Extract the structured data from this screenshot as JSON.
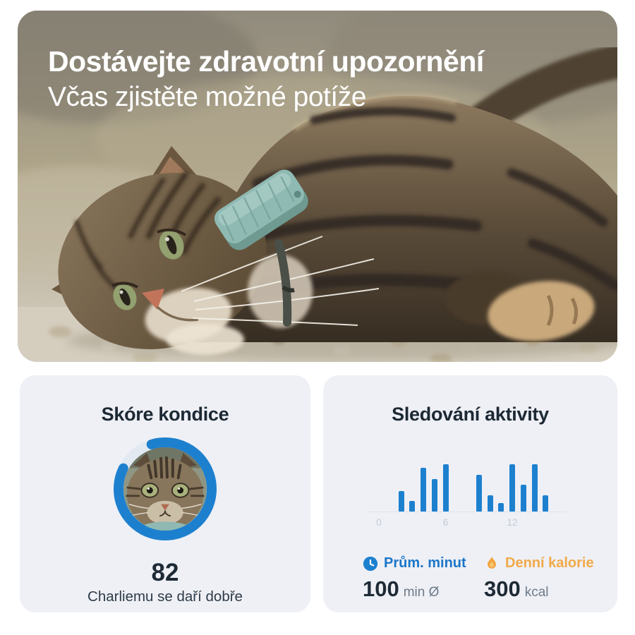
{
  "hero": {
    "title": "Dostávejte zdravotní upozornění",
    "subtitle": "Včas zjistěte možné potíže"
  },
  "fitness_card": {
    "title": "Skóre kondice",
    "score": "82",
    "ring_percent": 87,
    "ring_color": "#1d80cf",
    "track_color": "#e3e9f1",
    "caption": "Charliemu se daří dobře"
  },
  "activity_card": {
    "title": "Sledování aktivity",
    "stats": [
      {
        "icon": "clock-icon",
        "label": "Prům. minut",
        "value": "100",
        "unit": "min Ø",
        "color": "#1b76c8"
      },
      {
        "icon": "flame-icon",
        "label": "Denní kalorie",
        "value": "300",
        "unit": "kcal",
        "color": "#f2a948"
      }
    ]
  },
  "chart_data": {
    "type": "bar",
    "title": "Sledování aktivity",
    "x": [
      2,
      3,
      4,
      5,
      6,
      9,
      10,
      11,
      12,
      13,
      14,
      15
    ],
    "values": [
      44,
      22,
      92,
      68,
      100,
      78,
      34,
      18,
      100,
      56,
      100,
      34
    ],
    "xticks": [
      0,
      6,
      12
    ],
    "xlabel": "",
    "ylabel": "",
    "xlim": [
      0,
      17
    ],
    "ylim": [
      0,
      100
    ],
    "grid": false,
    "legend": false,
    "bar_color": "#1d80cf",
    "axis_color": "#dfe3e9",
    "tick_color": "#c4cbd4"
  },
  "colors": {
    "accent_blue": "#1d80cf",
    "accent_orange": "#f2a948",
    "card_bg": "#eef0f6",
    "text_dark": "#1e2a36",
    "text_gray": "#6e7a87",
    "hero_text": "#ffffff"
  }
}
